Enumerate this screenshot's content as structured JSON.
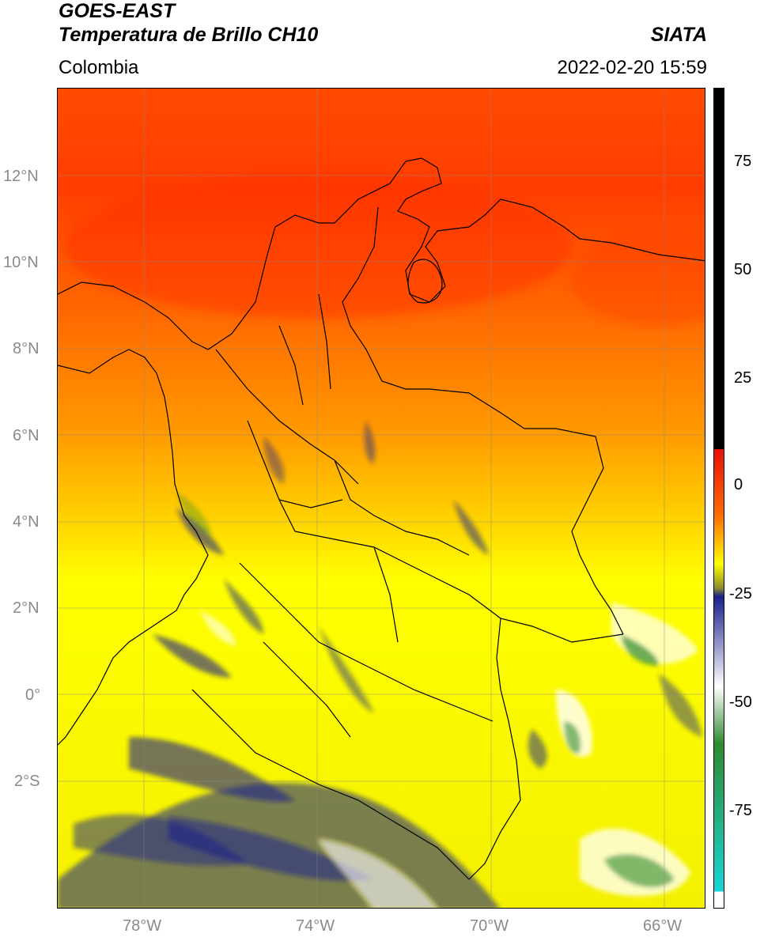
{
  "header": {
    "satellite": "GOES-EAST",
    "product": "Temperatura de Brillo CH10",
    "region": "Colombia",
    "agency": "SIATA",
    "timestamp": "2022-02-20 15:59"
  },
  "map": {
    "lat_labels": [
      "12°N",
      "10°N",
      "8°N",
      "6°N",
      "4°N",
      "2°N",
      "0°",
      "2°S"
    ],
    "lon_labels": [
      "78°W",
      "74°W",
      "70°W",
      "66°W"
    ],
    "lon_range": [
      -80,
      -65
    ],
    "lat_range": [
      -5,
      14
    ],
    "gridlines": true
  },
  "colorbar": {
    "labels": [
      "75",
      "50",
      "25",
      "0",
      "-25",
      "-50",
      "-75"
    ],
    "colors": {
      "warm_black": "#000000",
      "red": "#e8100a",
      "orange": "#ff6a00",
      "yellow": "#ffff00",
      "olive": "#8c8c2a",
      "navy": "#1a1f8c",
      "white": "#ffffff",
      "green": "#2f8a2f",
      "cyan": "#16d6d6"
    }
  }
}
